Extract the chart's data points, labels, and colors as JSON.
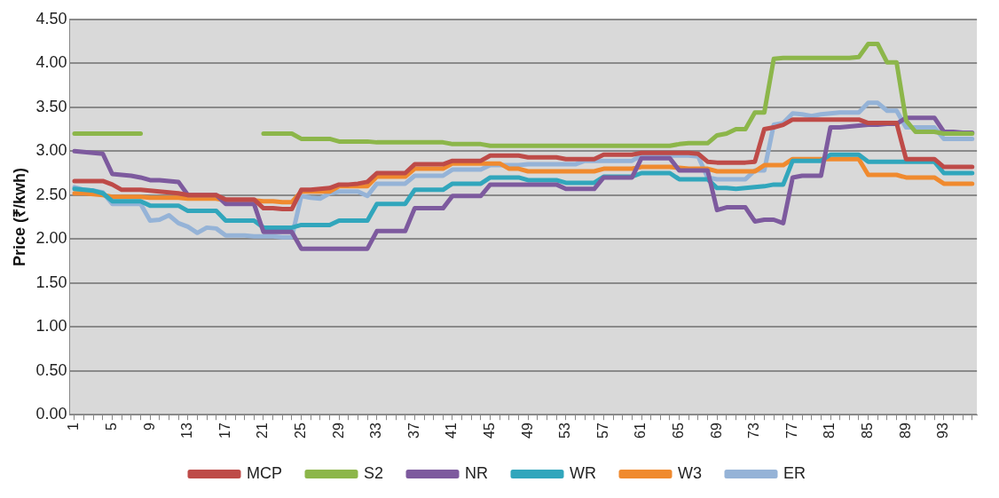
{
  "chart_data": {
    "type": "line",
    "ylabel": "Price (₹/kwh)",
    "categories": [
      "1",
      null,
      null,
      null,
      "5",
      null,
      null,
      null,
      "9",
      null,
      null,
      null,
      "13",
      null,
      null,
      null,
      "17",
      null,
      null,
      null,
      "21",
      null,
      null,
      null,
      "25",
      null,
      null,
      null,
      "29",
      null,
      null,
      null,
      "33",
      null,
      null,
      null,
      "37",
      null,
      null,
      null,
      "41",
      null,
      null,
      null,
      "45",
      null,
      null,
      null,
      "49",
      null,
      null,
      null,
      "53",
      null,
      null,
      null,
      "57",
      null,
      null,
      null,
      "61",
      null,
      null,
      null,
      "65",
      null,
      null,
      null,
      "69",
      null,
      null,
      null,
      "73",
      null,
      null,
      null,
      "77",
      null,
      null,
      null,
      "81",
      null,
      null,
      null,
      "85",
      null,
      null,
      null,
      "89",
      null,
      null,
      null,
      "93",
      null,
      null,
      null
    ],
    "ylim": [
      0,
      4.5
    ],
    "yticks": [
      {
        "value": 0,
        "label": "0.00"
      },
      {
        "value": 0.5,
        "label": "0.50"
      },
      {
        "value": 1,
        "label": "1.00"
      },
      {
        "value": 1.5,
        "label": "1.50"
      },
      {
        "value": 2,
        "label": "2.00"
      },
      {
        "value": 2.5,
        "label": "2.50"
      },
      {
        "value": 3,
        "label": "3.00"
      },
      {
        "value": 3.5,
        "label": "3.50"
      },
      {
        "value": 4,
        "label": "4.00"
      },
      {
        "value": 4.5,
        "label": "4.50"
      }
    ],
    "grid": "y",
    "legend": "bottom",
    "marker": "none",
    "line_style": "solid",
    "series": [
      {
        "name": "MCP",
        "color": "#be4b48",
        "values": [
          2.66,
          2.66,
          2.66,
          2.66,
          2.62,
          2.56,
          2.56,
          2.56,
          2.55,
          2.54,
          2.53,
          2.52,
          2.5,
          2.5,
          2.5,
          2.5,
          2.45,
          2.45,
          2.45,
          2.45,
          2.35,
          2.35,
          2.34,
          2.34,
          2.56,
          2.56,
          2.57,
          2.58,
          2.62,
          2.62,
          2.63,
          2.65,
          2.75,
          2.75,
          2.75,
          2.75,
          2.85,
          2.85,
          2.85,
          2.85,
          2.89,
          2.89,
          2.89,
          2.89,
          2.95,
          2.95,
          2.95,
          2.95,
          2.93,
          2.93,
          2.93,
          2.93,
          2.91,
          2.91,
          2.91,
          2.91,
          2.96,
          2.96,
          2.96,
          2.96,
          2.98,
          2.98,
          2.98,
          2.98,
          2.98,
          2.98,
          2.97,
          2.88,
          2.87,
          2.87,
          2.87,
          2.87,
          2.88,
          3.25,
          3.27,
          3.3,
          3.36,
          3.36,
          3.36,
          3.36,
          3.36,
          3.36,
          3.36,
          3.36,
          3.32,
          3.32,
          3.32,
          3.32,
          2.91,
          2.91,
          2.91,
          2.91,
          2.82,
          2.82,
          2.82,
          2.82
        ]
      },
      {
        "name": "S2",
        "color": "#8cb64a",
        "values": [
          3.2,
          3.2,
          3.2,
          3.2,
          3.2,
          3.2,
          3.2,
          3.2,
          null,
          null,
          null,
          null,
          null,
          null,
          null,
          null,
          null,
          null,
          null,
          null,
          3.2,
          3.2,
          3.2,
          3.2,
          3.14,
          3.14,
          3.14,
          3.14,
          3.11,
          3.11,
          3.11,
          3.11,
          3.1,
          3.1,
          3.1,
          3.1,
          3.1,
          3.1,
          3.1,
          3.1,
          3.08,
          3.08,
          3.08,
          3.08,
          3.06,
          3.06,
          3.06,
          3.06,
          3.06,
          3.06,
          3.06,
          3.06,
          3.06,
          3.06,
          3.06,
          3.06,
          3.06,
          3.06,
          3.06,
          3.06,
          3.06,
          3.06,
          3.06,
          3.06,
          3.08,
          3.09,
          3.09,
          3.09,
          3.18,
          3.2,
          3.25,
          3.25,
          3.44,
          3.44,
          4.05,
          4.06,
          4.06,
          4.06,
          4.06,
          4.06,
          4.06,
          4.06,
          4.06,
          4.07,
          4.22,
          4.22,
          4.01,
          4.01,
          3.35,
          3.22,
          3.22,
          3.22,
          3.2,
          3.2,
          3.2,
          3.2
        ]
      },
      {
        "name": "NR",
        "color": "#7d5a9e",
        "values": [
          3.0,
          2.99,
          2.98,
          2.97,
          2.74,
          2.73,
          2.72,
          2.7,
          2.67,
          2.67,
          2.66,
          2.65,
          2.5,
          2.5,
          2.5,
          2.5,
          2.4,
          2.4,
          2.4,
          2.4,
          2.08,
          2.08,
          2.08,
          2.08,
          1.89,
          1.89,
          1.89,
          1.89,
          1.89,
          1.89,
          1.89,
          1.89,
          2.09,
          2.09,
          2.09,
          2.09,
          2.35,
          2.35,
          2.35,
          2.35,
          2.49,
          2.49,
          2.49,
          2.49,
          2.62,
          2.62,
          2.62,
          2.62,
          2.62,
          2.62,
          2.62,
          2.62,
          2.57,
          2.57,
          2.57,
          2.57,
          2.7,
          2.7,
          2.7,
          2.7,
          2.92,
          2.92,
          2.92,
          2.92,
          2.78,
          2.78,
          2.78,
          2.78,
          2.33,
          2.36,
          2.36,
          2.36,
          2.2,
          2.22,
          2.22,
          2.18,
          2.7,
          2.72,
          2.72,
          2.72,
          3.27,
          3.27,
          3.28,
          3.29,
          3.3,
          3.3,
          3.31,
          3.31,
          3.38,
          3.38,
          3.38,
          3.38,
          3.22,
          3.22,
          3.21,
          3.21
        ]
      },
      {
        "name": "WR",
        "color": "#31a6bc",
        "values": [
          2.57,
          2.56,
          2.55,
          2.52,
          2.43,
          2.43,
          2.43,
          2.43,
          2.38,
          2.38,
          2.38,
          2.38,
          2.32,
          2.32,
          2.32,
          2.32,
          2.21,
          2.21,
          2.21,
          2.21,
          2.13,
          2.13,
          2.13,
          2.13,
          2.16,
          2.16,
          2.16,
          2.16,
          2.21,
          2.21,
          2.21,
          2.21,
          2.4,
          2.4,
          2.4,
          2.4,
          2.56,
          2.56,
          2.56,
          2.56,
          2.63,
          2.63,
          2.63,
          2.63,
          2.7,
          2.7,
          2.7,
          2.7,
          2.67,
          2.67,
          2.67,
          2.67,
          2.64,
          2.64,
          2.64,
          2.64,
          2.71,
          2.71,
          2.71,
          2.71,
          2.75,
          2.75,
          2.75,
          2.75,
          2.68,
          2.68,
          2.68,
          2.68,
          2.58,
          2.58,
          2.57,
          2.58,
          2.59,
          2.6,
          2.62,
          2.62,
          2.89,
          2.89,
          2.89,
          2.89,
          2.96,
          2.96,
          2.96,
          2.96,
          2.88,
          2.88,
          2.88,
          2.88,
          2.88,
          2.88,
          2.88,
          2.88,
          2.75,
          2.75,
          2.75,
          2.75
        ]
      },
      {
        "name": "W3",
        "color": "#f08a2e",
        "values": [
          2.52,
          2.52,
          2.51,
          2.5,
          2.48,
          2.48,
          2.48,
          2.48,
          2.47,
          2.47,
          2.47,
          2.47,
          2.46,
          2.46,
          2.46,
          2.46,
          2.44,
          2.44,
          2.44,
          2.44,
          2.43,
          2.43,
          2.42,
          2.42,
          2.54,
          2.54,
          2.54,
          2.54,
          2.6,
          2.6,
          2.6,
          2.6,
          2.71,
          2.71,
          2.71,
          2.71,
          2.8,
          2.8,
          2.8,
          2.8,
          2.86,
          2.86,
          2.86,
          2.86,
          2.86,
          2.86,
          2.8,
          2.8,
          2.77,
          2.77,
          2.77,
          2.77,
          2.77,
          2.77,
          2.77,
          2.77,
          2.8,
          2.8,
          2.8,
          2.8,
          2.82,
          2.82,
          2.82,
          2.82,
          2.81,
          2.8,
          2.8,
          2.8,
          2.77,
          2.77,
          2.77,
          2.77,
          2.77,
          2.84,
          2.84,
          2.84,
          2.91,
          2.91,
          2.91,
          2.91,
          2.91,
          2.91,
          2.91,
          2.91,
          2.73,
          2.73,
          2.73,
          2.73,
          2.7,
          2.7,
          2.7,
          2.7,
          2.63,
          2.63,
          2.63,
          2.63
        ]
      },
      {
        "name": "ER",
        "color": "#95b3d7",
        "values": [
          2.59,
          2.56,
          2.55,
          2.53,
          2.4,
          2.4,
          2.4,
          2.4,
          2.21,
          2.22,
          2.27,
          2.18,
          2.14,
          2.07,
          2.13,
          2.12,
          2.04,
          2.04,
          2.04,
          2.03,
          2.03,
          2.03,
          2.02,
          2.02,
          2.49,
          2.47,
          2.46,
          2.52,
          2.54,
          2.54,
          2.54,
          2.49,
          2.63,
          2.63,
          2.63,
          2.63,
          2.72,
          2.72,
          2.72,
          2.72,
          2.79,
          2.79,
          2.79,
          2.79,
          2.84,
          2.84,
          2.84,
          2.84,
          2.85,
          2.85,
          2.85,
          2.85,
          2.85,
          2.85,
          2.89,
          2.89,
          2.89,
          2.89,
          2.89,
          2.89,
          2.95,
          2.95,
          2.95,
          2.95,
          2.95,
          2.95,
          2.94,
          2.7,
          2.68,
          2.68,
          2.68,
          2.68,
          2.78,
          2.78,
          3.3,
          3.32,
          3.43,
          3.42,
          3.4,
          3.42,
          3.43,
          3.44,
          3.44,
          3.44,
          3.55,
          3.55,
          3.46,
          3.46,
          3.27,
          3.27,
          3.27,
          3.27,
          3.14,
          3.14,
          3.14,
          3.14
        ]
      }
    ]
  }
}
